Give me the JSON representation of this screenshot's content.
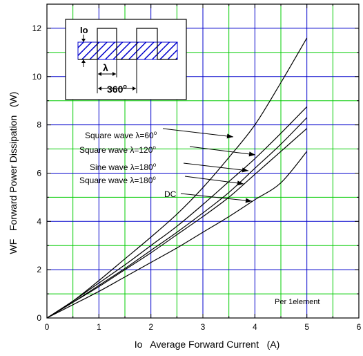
{
  "chart_data": {
    "type": "line",
    "xlabel": "Io   Average Forward Current   (A)",
    "ylabel": "WF   Forward Power Dissipation   (W)",
    "xlim": [
      0,
      6
    ],
    "ylim": [
      0,
      13
    ],
    "x_ticks": [
      "0",
      "1",
      "2",
      "3",
      "4",
      "5",
      "6"
    ],
    "y_ticks": [
      "0",
      "2",
      "4",
      "6",
      "8",
      "10",
      "12"
    ],
    "grid": true,
    "note": "Per 1element",
    "colors": {
      "grid_major": "#0000cc",
      "grid_minor": "#00cc00",
      "curve": "#000000",
      "inset_hatch": "#0000cc"
    },
    "inset": {
      "io_label": "Io",
      "lambda_label": "λ",
      "period_label": "360",
      "period_sup": "o"
    },
    "series": [
      {
        "name": "Square wave λ=60°",
        "label_text": "Square wave λ=60",
        "label_sup": "o",
        "x": [
          0,
          0.5,
          1,
          1.5,
          2,
          2.5,
          3,
          3.5,
          4,
          4.5,
          5
        ],
        "y": [
          0,
          0.7,
          1.55,
          2.45,
          3.35,
          4.3,
          5.4,
          6.65,
          8.0,
          9.75,
          11.6
        ]
      },
      {
        "name": "Square wave λ=120°",
        "label_text": "Square wave λ=120",
        "label_sup": "o",
        "x": [
          0,
          0.5,
          1,
          1.5,
          2,
          2.5,
          3,
          3.5,
          4,
          4.5,
          5
        ],
        "y": [
          0,
          0.7,
          1.45,
          2.2,
          3.0,
          3.8,
          4.7,
          5.65,
          6.6,
          7.65,
          8.75
        ]
      },
      {
        "name": "Sine wave λ=180°",
        "label_text": "Sine wave λ=180",
        "label_sup": "o",
        "x": [
          0,
          0.5,
          1,
          1.5,
          2,
          2.5,
          3,
          3.5,
          4,
          4.5,
          5
        ],
        "y": [
          0,
          0.65,
          1.35,
          2.05,
          2.8,
          3.55,
          4.35,
          5.2,
          6.2,
          7.2,
          8.3
        ]
      },
      {
        "name": "Square wave λ=180°",
        "label_text": "Square wave λ=180",
        "label_sup": "o",
        "x": [
          0,
          0.5,
          1,
          1.5,
          2,
          2.5,
          3,
          3.5,
          4,
          4.5,
          5
        ],
        "y": [
          0,
          0.65,
          1.3,
          2.0,
          2.7,
          3.45,
          4.2,
          5.0,
          5.95,
          6.9,
          7.85
        ]
      },
      {
        "name": "DC",
        "label_text": "DC",
        "label_sup": "",
        "x": [
          0,
          0.5,
          1,
          1.5,
          2,
          2.5,
          3,
          3.5,
          4,
          4.5,
          5
        ],
        "y": [
          0,
          0.55,
          1.1,
          1.7,
          2.3,
          2.9,
          3.55,
          4.2,
          4.9,
          5.6,
          6.9
        ]
      }
    ]
  }
}
